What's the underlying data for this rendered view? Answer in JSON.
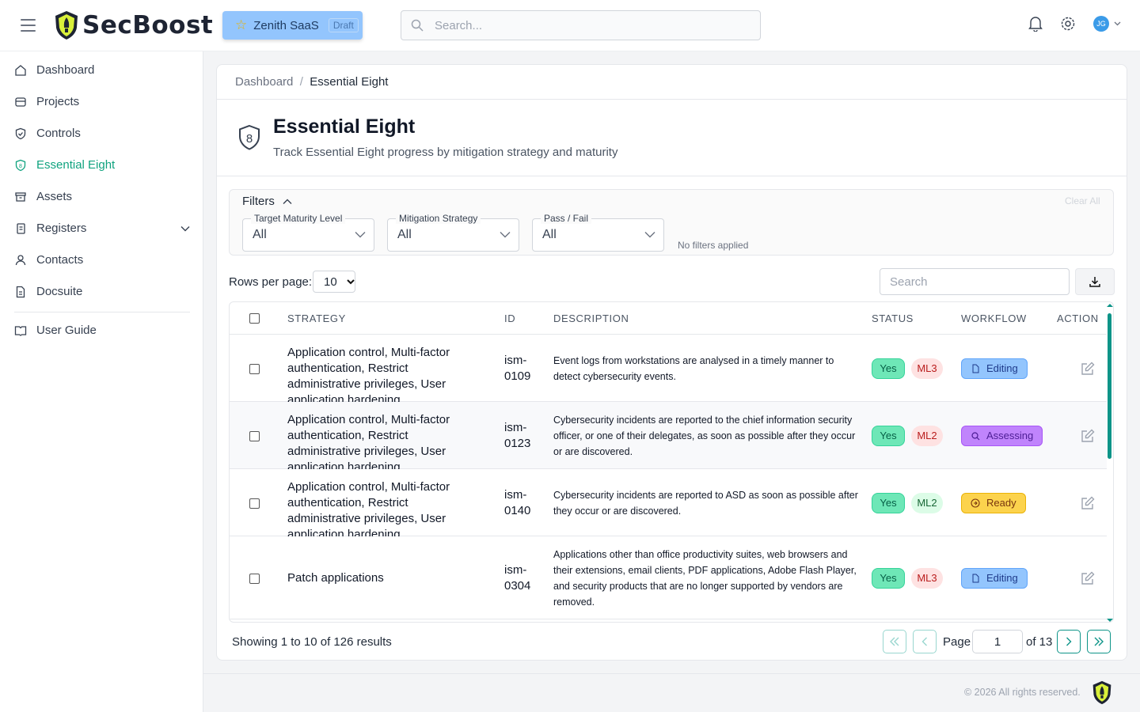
{
  "header": {
    "brand": "SecBoost",
    "project": "Zenith SaaS",
    "project_badge": "Draft",
    "search_placeholder": "Search...",
    "avatar_initials": "JG"
  },
  "sidebar": {
    "items": [
      {
        "label": "Dashboard"
      },
      {
        "label": "Projects"
      },
      {
        "label": "Controls"
      },
      {
        "label": "Essential Eight",
        "active": true
      },
      {
        "label": "Assets"
      },
      {
        "label": "Registers"
      },
      {
        "label": "Contacts"
      },
      {
        "label": "Docsuite"
      },
      {
        "label": "User Guide"
      }
    ]
  },
  "breadcrumb": {
    "root": "Dashboard",
    "sep": "/",
    "current": "Essential Eight"
  },
  "page": {
    "title": "Essential Eight",
    "subtitle": "Track Essential Eight progress by mitigation strategy and maturity"
  },
  "filters": {
    "title": "Filters",
    "clear_all": "Clear All",
    "no_filters": "No filters applied",
    "fields": [
      {
        "label": "Target Maturity Level",
        "value": "All"
      },
      {
        "label": "Mitigation Strategy",
        "value": "All"
      },
      {
        "label": "Pass / Fail",
        "value": "All"
      }
    ]
  },
  "table_controls": {
    "rows_per_page_label": "Rows per page:",
    "rows_per_page": "10",
    "search_placeholder": "Search"
  },
  "table": {
    "columns": [
      "STRATEGY",
      "ID",
      "DESCRIPTION",
      "STATUS",
      "WORKFLOW",
      "ACTION"
    ],
    "rows": [
      {
        "strategy": "Application control, Multi-factor authentication, Restrict administrative privileges, User application hardening",
        "id": "ism-0109",
        "description": "Event logs from workstations are analysed in a timely manner to detect cybersecurity events.",
        "status": "Yes",
        "maturity": "ML3",
        "workflow": "Editing"
      },
      {
        "strategy": "Application control, Multi-factor authentication, Restrict administrative privileges, User application hardening",
        "id": "ism-0123",
        "description": "Cybersecurity incidents are reported to the chief information security officer, or one of their delegates, as soon as possible after they occur or are discovered.",
        "status": "Yes",
        "maturity": "ML2",
        "workflow": "Assessing"
      },
      {
        "strategy": "Application control, Multi-factor authentication, Restrict administrative privileges, User application hardening",
        "id": "ism-0140",
        "description": "Cybersecurity incidents are reported to ASD as soon as possible after they occur or are discovered.",
        "status": "Yes",
        "maturity": "ML2",
        "workflow": "Ready"
      },
      {
        "strategy": "Patch applications",
        "id": "ism-0304",
        "description": "Applications other than office productivity suites, web browsers and their extensions, email clients, PDF applications, Adobe Flash Player, and security products that are no longer supported by vendors are removed.",
        "status": "Yes",
        "maturity": "ML3",
        "workflow": "Editing"
      }
    ]
  },
  "pagination": {
    "summary": "Showing 1 to 10 of 126 results",
    "page_label": "Page",
    "page": "1",
    "of_label": "of 13"
  },
  "footer": {
    "copyright": "© 2026 All rights reserved."
  },
  "colors": {
    "accent": "#0d9488",
    "active_nav": "#10a37f",
    "editing": "#93c5fd",
    "assessing": "#c084fc",
    "ready": "#fcd34d",
    "yes": "#6ee7b7"
  }
}
